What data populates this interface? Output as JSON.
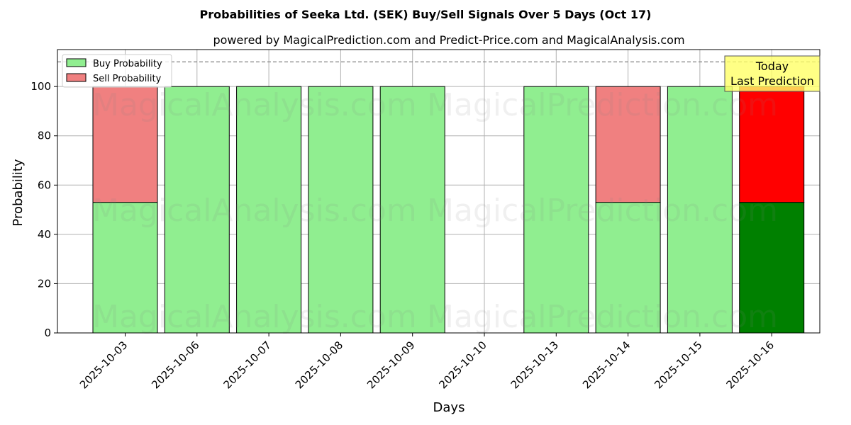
{
  "chart_data": {
    "type": "bar",
    "stacked": true,
    "title": "Probabilities of Seeka Ltd. (SEK) Buy/Sell Signals Over 5 Days (Oct 17)",
    "subtitle": "powered by MagicalPrediction.com and Predict-Price.com and MagicalAnalysis.com",
    "xlabel": "Days",
    "ylabel": "Probability",
    "ylim": [
      0,
      115
    ],
    "yticks": [
      "0",
      "20",
      "40",
      "60",
      "80",
      "100"
    ],
    "categories": [
      "2025-10-03",
      "2025-10-06",
      "2025-10-07",
      "2025-10-08",
      "2025-10-09",
      "2025-10-10",
      "2025-10-13",
      "2025-10-14",
      "2025-10-15",
      "2025-10-16"
    ],
    "series": [
      {
        "name": "Buy Probability",
        "values": [
          53,
          100,
          100,
          100,
          100,
          null,
          100,
          53,
          100,
          53
        ]
      },
      {
        "name": "Sell Probability",
        "values": [
          47,
          0,
          0,
          0,
          0,
          null,
          0,
          47,
          0,
          47
        ]
      }
    ],
    "highlight_category": "2025-10-16",
    "reference_line": 110,
    "annotation": {
      "line1": "Today",
      "line2": "Last Prediction"
    },
    "watermarks": [
      "MagicalAnalysis.com",
      "MagicalPrediction.com"
    ],
    "legend_position": "top-left",
    "grid": true,
    "colors": {
      "buy": "#90ee90",
      "sell": "#f08080",
      "buy_highlight": "#008000",
      "sell_highlight": "#ff0000",
      "annotation_bg": "#ffff66",
      "grid": "#b0b0b0",
      "ref_line": "#808080"
    }
  }
}
